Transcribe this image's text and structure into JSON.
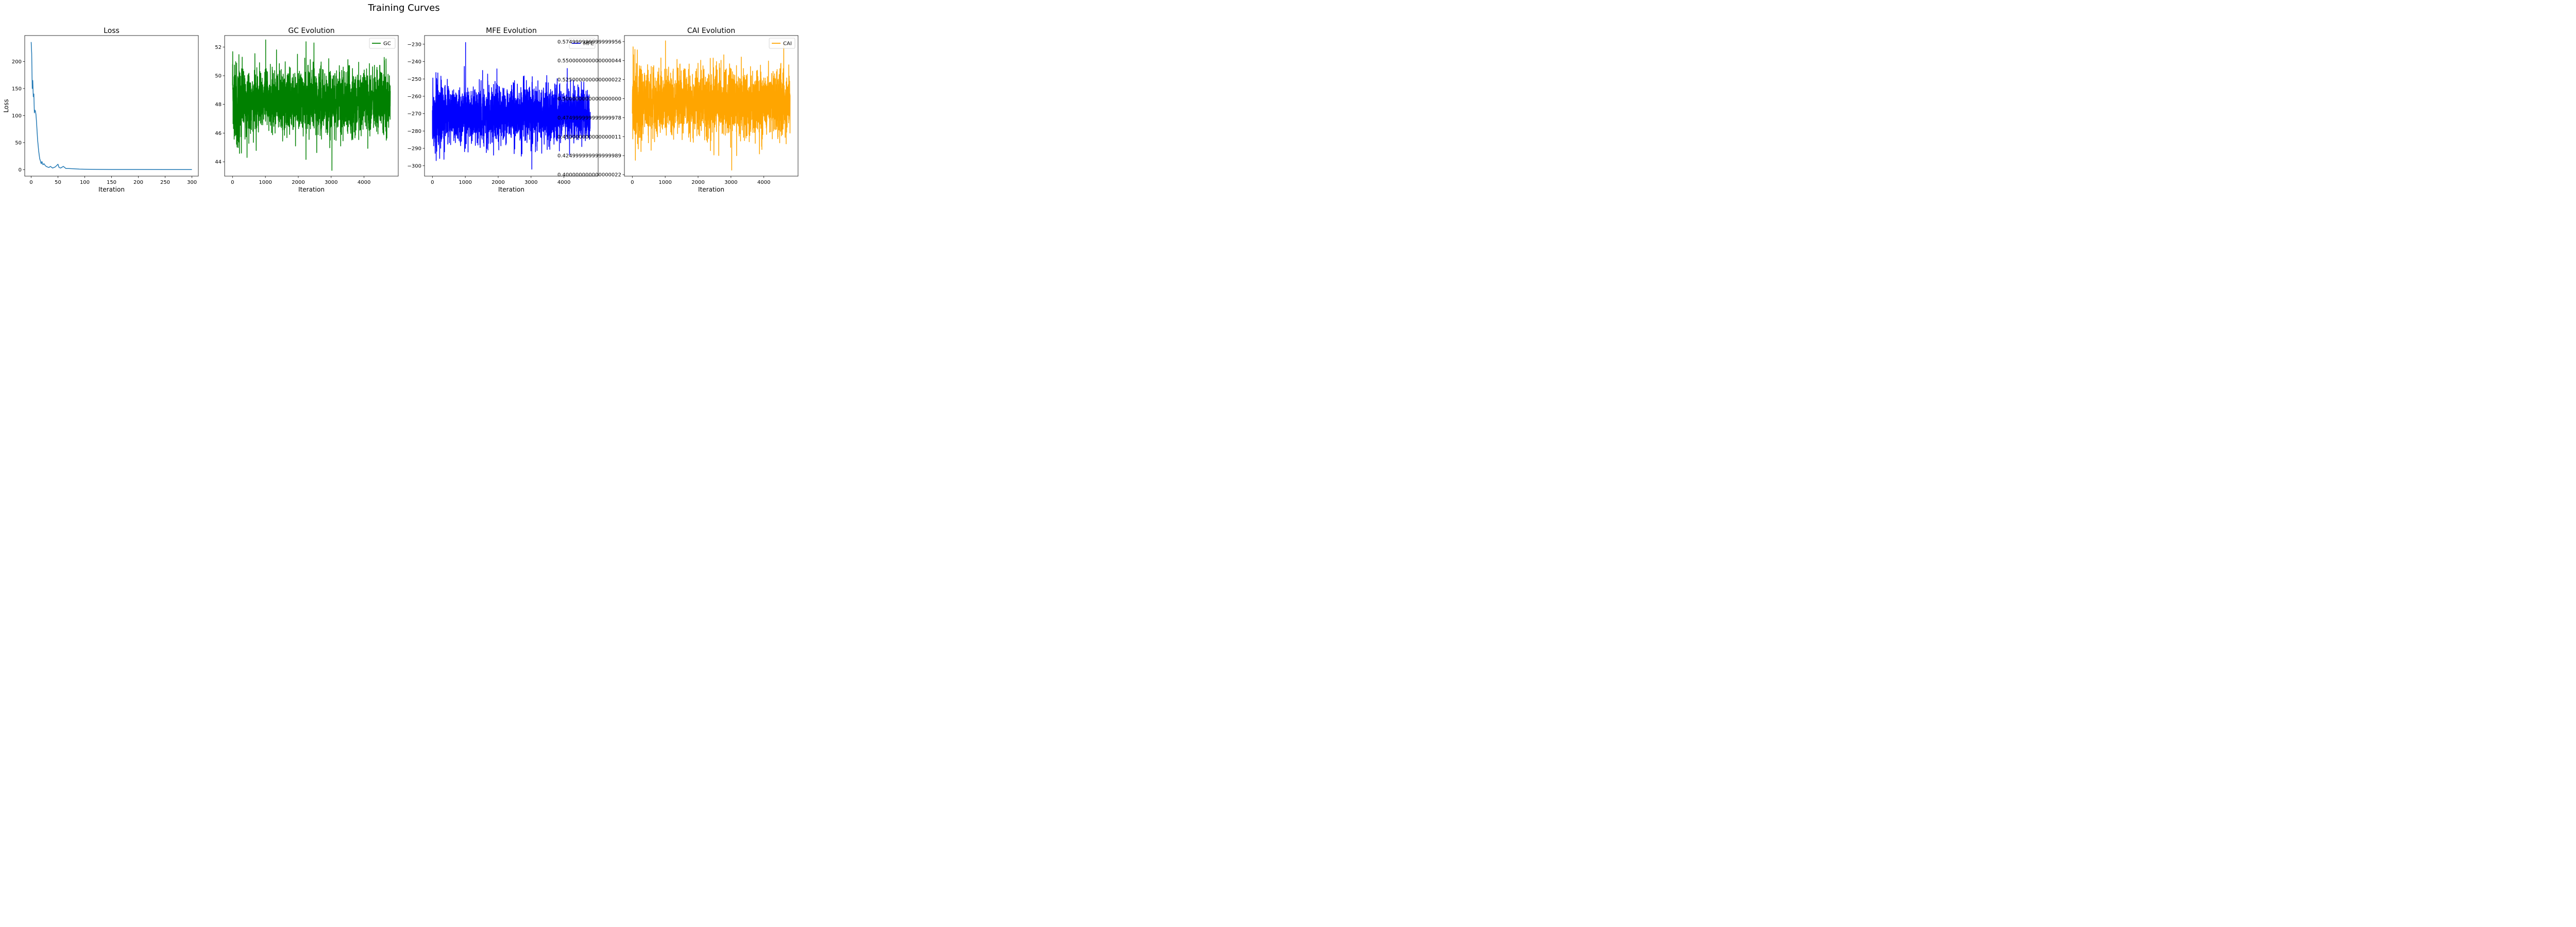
{
  "figure": {
    "title": "Training Curves"
  },
  "chart_data": [
    {
      "type": "line",
      "title": "Loss",
      "xlabel": "Iteration",
      "ylabel": "Loss",
      "xlim": [
        -12,
        312
      ],
      "ylim": [
        -12,
        248
      ],
      "xticks": [
        0,
        50,
        100,
        150,
        200,
        250,
        300
      ],
      "yticks": [
        0,
        50,
        100,
        150,
        200
      ],
      "legend": null,
      "series": [
        {
          "color": "#1f77b4",
          "x": [
            0,
            1,
            2,
            3,
            4,
            5,
            6,
            7,
            8,
            9,
            10,
            11,
            12,
            13,
            14,
            15,
            16,
            17,
            18,
            19,
            20,
            22,
            24,
            26,
            28,
            30,
            33,
            36,
            40,
            45,
            48,
            50,
            52,
            55,
            60,
            65,
            70,
            80,
            90,
            100,
            120,
            150,
            200,
            250,
            300
          ],
          "y": [
            236,
            215,
            150,
            165,
            135,
            140,
            105,
            110,
            108,
            102,
            88,
            72,
            55,
            45,
            35,
            27,
            20,
            17,
            13,
            11,
            15,
            9,
            11,
            8,
            6,
            5,
            4,
            6,
            3,
            5,
            8,
            10,
            4,
            3,
            6,
            2,
            2,
            1.5,
            1,
            0.8,
            0.5,
            0.3,
            0.3,
            0.2,
            0.2
          ]
        }
      ]
    },
    {
      "type": "line",
      "title": "GC Evolution",
      "xlabel": "Iteration",
      "ylabel": "",
      "xlim": [
        -240,
        5040
      ],
      "ylim": [
        43.0,
        52.8
      ],
      "xticks": [
        0,
        1000,
        2000,
        3000,
        4000
      ],
      "yticks": [
        44,
        46,
        48,
        50,
        52
      ],
      "legend": "top-right",
      "series": [
        {
          "name": "GC",
          "color": "#008000",
          "n": 4800,
          "mean": 48.2,
          "spread": 1.1,
          "min": 43.4,
          "max": 52.5
        }
      ]
    },
    {
      "type": "line",
      "title": "MFE Evolution",
      "xlabel": "Iteration",
      "ylabel": "",
      "xlim": [
        -240,
        5040
      ],
      "ylim": [
        -306,
        -225
      ],
      "xticks": [
        0,
        1000,
        2000,
        3000,
        4000
      ],
      "yticks": [
        -300,
        -290,
        -280,
        -270,
        -260,
        -250,
        -240,
        -230
      ],
      "legend": "top-right",
      "series": [
        {
          "name": "MFE",
          "color": "#0000ff",
          "n": 4800,
          "mean": -270.5,
          "spread": 8,
          "min": -302,
          "max": -229
        }
      ]
    },
    {
      "type": "line",
      "title": "CAI Evolution",
      "xlabel": "Iteration",
      "ylabel": "",
      "xlim": [
        -240,
        5040
      ],
      "ylim": [
        0.398,
        0.583
      ],
      "xticks": [
        0,
        1000,
        2000,
        3000,
        4000
      ],
      "yticks": [
        0.4,
        0.425,
        0.45,
        0.475,
        0.5,
        0.525,
        0.55,
        0.575
      ],
      "legend": "top-right",
      "series": [
        {
          "name": "CAI",
          "color": "#ffa500",
          "n": 4800,
          "mean": 0.495,
          "spread": 0.022,
          "min": 0.406,
          "max": 0.576
        }
      ]
    }
  ]
}
